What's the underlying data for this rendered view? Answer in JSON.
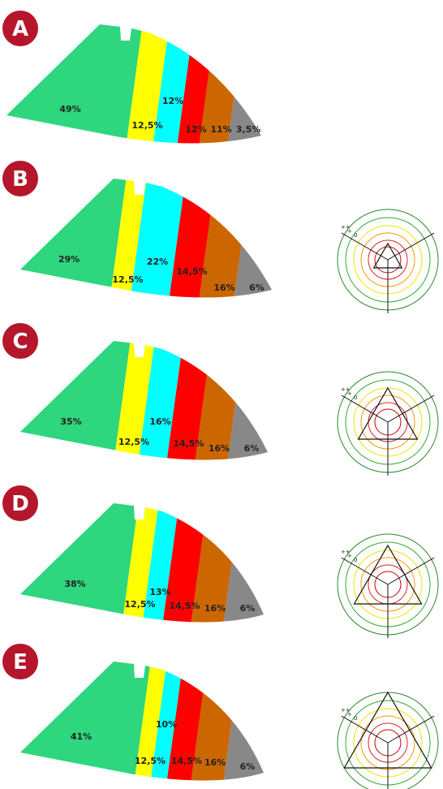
{
  "panels": [
    {
      "letter": "A",
      "segments": [
        "49%",
        "12,5%",
        "12%",
        "12%",
        "11%",
        "3,5%"
      ]
    },
    {
      "letter": "B",
      "segments": [
        "29%",
        "12,5%",
        "22%",
        "14,5%",
        "16%",
        "6%"
      ]
    },
    {
      "letter": "C",
      "segments": [
        "35%",
        "12,5%",
        "16%",
        "14,5%",
        "16%",
        "6%"
      ]
    },
    {
      "letter": "D",
      "segments": [
        "38%",
        "12,5%",
        "13%",
        "14,5%",
        "16%",
        "6%"
      ]
    },
    {
      "letter": "E",
      "segments": [
        "41%",
        "12,5%",
        "10%",
        "14,5%",
        "16%",
        "6%"
      ]
    }
  ],
  "radar_labels": [
    "++",
    "+",
    "0"
  ]
}
